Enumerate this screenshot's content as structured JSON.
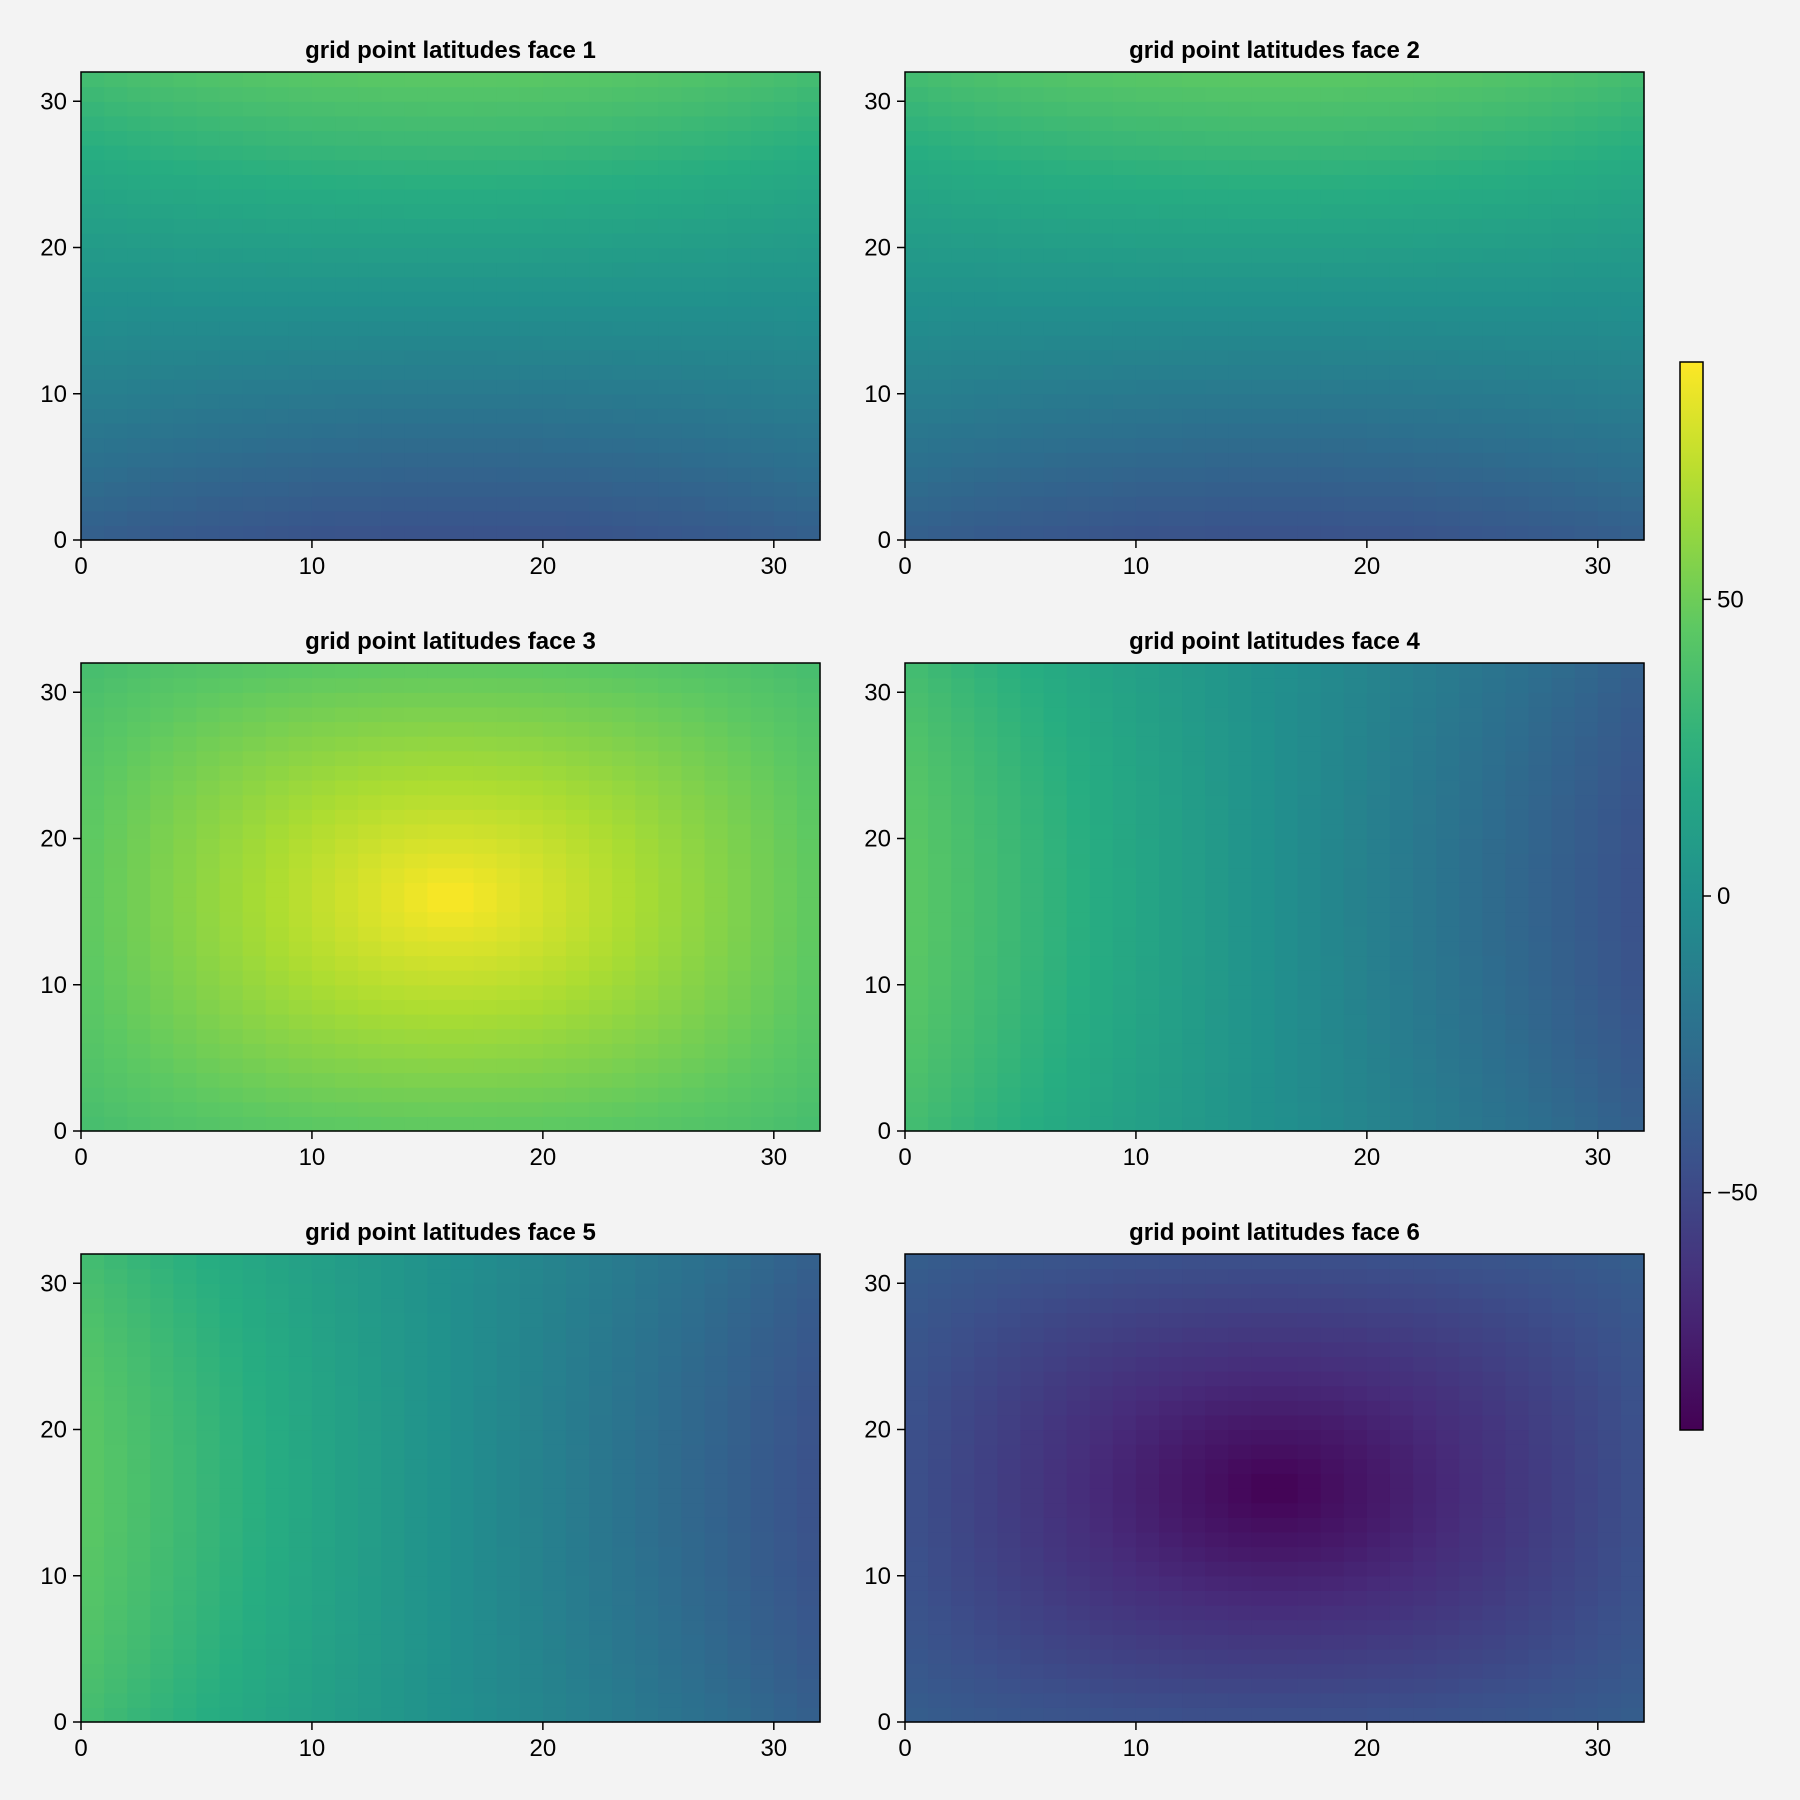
{
  "chart_data": {
    "type": "heatmap",
    "figure_title": "",
    "colormap": "viridis",
    "colorbar": {
      "range": [
        -90,
        90
      ],
      "ticks": [
        50,
        0,
        -50
      ],
      "tick_labels": [
        "50",
        "0",
        "−50"
      ],
      "orientation": "vertical",
      "position": "right"
    },
    "grid_size": 32,
    "panels": [
      {
        "title": "grid point latitudes face 1",
        "xlim": [
          0,
          32
        ],
        "ylim": [
          0,
          32
        ],
        "xticks": [
          0,
          10,
          20,
          30
        ],
        "xtick_labels": [
          "0",
          "10",
          "20",
          "30"
        ],
        "yticks": [
          0,
          10,
          20,
          30
        ],
        "ytick_labels": [
          "0",
          "10",
          "20",
          "30"
        ],
        "field": "equatorial_face_rows",
        "value_range": [
          -45,
          45
        ]
      },
      {
        "title": "grid point latitudes face 2",
        "xlim": [
          0,
          32
        ],
        "ylim": [
          0,
          32
        ],
        "xticks": [
          0,
          10,
          20,
          30
        ],
        "xtick_labels": [
          "0",
          "10",
          "20",
          "30"
        ],
        "yticks": [
          0,
          10,
          20,
          30
        ],
        "ytick_labels": [
          "0",
          "10",
          "20",
          "30"
        ],
        "field": "equatorial_face_rows",
        "value_range": [
          -45,
          45
        ]
      },
      {
        "title": "grid point latitudes face 3",
        "xlim": [
          0,
          32
        ],
        "ylim": [
          0,
          32
        ],
        "xticks": [
          0,
          10,
          20,
          30
        ],
        "xtick_labels": [
          "0",
          "10",
          "20",
          "30"
        ],
        "yticks": [
          0,
          10,
          20,
          30
        ],
        "ytick_labels": [
          "0",
          "10",
          "20",
          "30"
        ],
        "field": "north_pole_face",
        "value_range": [
          35,
          90
        ]
      },
      {
        "title": "grid point latitudes face 4",
        "xlim": [
          0,
          32
        ],
        "ylim": [
          0,
          32
        ],
        "xticks": [
          0,
          10,
          20,
          30
        ],
        "xtick_labels": [
          "0",
          "10",
          "20",
          "30"
        ],
        "yticks": [
          0,
          10,
          20,
          30
        ],
        "ytick_labels": [
          "0",
          "10",
          "20",
          "30"
        ],
        "field": "equatorial_face_columns_descending",
        "value_range": [
          -45,
          45
        ]
      },
      {
        "title": "grid point latitudes face 5",
        "xlim": [
          0,
          32
        ],
        "ylim": [
          0,
          32
        ],
        "xticks": [
          0,
          10,
          20,
          30
        ],
        "xtick_labels": [
          "0",
          "10",
          "20",
          "30"
        ],
        "yticks": [
          0,
          10,
          20,
          30
        ],
        "ytick_labels": [
          "0",
          "10",
          "20",
          "30"
        ],
        "field": "equatorial_face_columns_descending",
        "value_range": [
          -45,
          45
        ]
      },
      {
        "title": "grid point latitudes face 6",
        "xlim": [
          0,
          32
        ],
        "ylim": [
          0,
          32
        ],
        "xticks": [
          0,
          10,
          20,
          30
        ],
        "xtick_labels": [
          "0",
          "10",
          "20",
          "30"
        ],
        "yticks": [
          0,
          10,
          20,
          30
        ],
        "ytick_labels": [
          "0",
          "10",
          "20",
          "30"
        ],
        "field": "south_pole_face",
        "value_range": [
          -90,
          -35
        ]
      }
    ]
  }
}
